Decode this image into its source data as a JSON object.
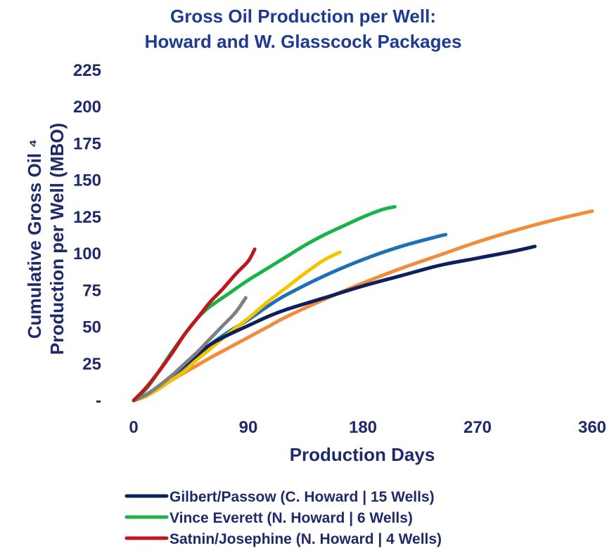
{
  "chart_data": {
    "type": "line",
    "title": [
      "Gross Oil Production per Well:",
      "Howard and W. Glasscock Packages"
    ],
    "xlabel": "Production Days",
    "ylabel": [
      "Cumulative Gross Oil ⁴",
      "Production per Well (MBO)"
    ],
    "xlim": [
      0,
      360
    ],
    "ylim": [
      0,
      225
    ],
    "x_ticks": [
      0,
      90,
      180,
      270,
      360
    ],
    "x_tick_labels": [
      "0",
      "90",
      "180",
      "270",
      "360"
    ],
    "y_ticks": [
      0,
      25,
      50,
      75,
      100,
      125,
      150,
      175,
      200,
      225
    ],
    "y_tick_labels": [
      "-",
      "25",
      "50",
      "75",
      "100",
      "125",
      "150",
      "175",
      "200",
      "225"
    ],
    "grid": false,
    "legend_position": "bottom",
    "series": [
      {
        "name": "Gilbert/Passow (C. Howard | 15 Wells)",
        "color": "#0d1f5c",
        "x": [
          0,
          10,
          20,
          30,
          40,
          50,
          60,
          75,
          90,
          105,
          120,
          150,
          180,
          210,
          240,
          270,
          300,
          315
        ],
        "y": [
          0,
          4,
          10,
          17,
          24,
          31,
          38,
          45,
          51,
          57,
          62,
          70,
          78,
          85,
          92,
          97,
          102,
          105
        ]
      },
      {
        "name": "Vince Everett (N. Howard | 6 Wells)",
        "color": "#1ab34a",
        "x": [
          0,
          10,
          20,
          30,
          40,
          50,
          60,
          75,
          90,
          105,
          120,
          135,
          150,
          165,
          180,
          195,
          205
        ],
        "y": [
          0,
          8,
          20,
          33,
          45,
          56,
          64,
          73,
          82,
          90,
          98,
          106,
          113,
          119,
          125,
          130,
          132
        ]
      },
      {
        "name": "Satnin/Josephine (N. Howard | 4 Wells)",
        "color": "#c0161e",
        "x": [
          0,
          10,
          20,
          30,
          40,
          50,
          60,
          70,
          80,
          90,
          95
        ],
        "y": [
          0,
          9,
          20,
          32,
          45,
          56,
          67,
          76,
          86,
          95,
          103
        ]
      },
      {
        "name": "",
        "color": "#808080",
        "x": [
          0,
          10,
          20,
          30,
          40,
          50,
          60,
          70,
          80,
          88
        ],
        "y": [
          0,
          4,
          10,
          17,
          25,
          33,
          42,
          51,
          60,
          70
        ]
      },
      {
        "name": "",
        "color": "#f5c400",
        "x": [
          0,
          10,
          20,
          30,
          40,
          50,
          60,
          75,
          90,
          105,
          120,
          135,
          150,
          162
        ],
        "y": [
          0,
          3,
          8,
          14,
          20,
          28,
          35,
          46,
          56,
          67,
          77,
          87,
          96,
          101
        ]
      },
      {
        "name": "",
        "color": "#1f6fb5",
        "x": [
          0,
          10,
          20,
          30,
          40,
          50,
          60,
          75,
          90,
          105,
          120,
          150,
          180,
          210,
          240,
          245
        ],
        "y": [
          0,
          3,
          9,
          16,
          23,
          30,
          38,
          47,
          55,
          64,
          72,
          85,
          96,
          105,
          112,
          113
        ]
      },
      {
        "name": "",
        "color": "#f28c3c",
        "x": [
          0,
          10,
          20,
          30,
          40,
          50,
          60,
          75,
          90,
          105,
          120,
          150,
          180,
          210,
          240,
          270,
          300,
          330,
          360
        ],
        "y": [
          0,
          4,
          9,
          14,
          19,
          24,
          29,
          36,
          43,
          50,
          57,
          69,
          80,
          90,
          99,
          108,
          116,
          123,
          129
        ]
      }
    ]
  }
}
